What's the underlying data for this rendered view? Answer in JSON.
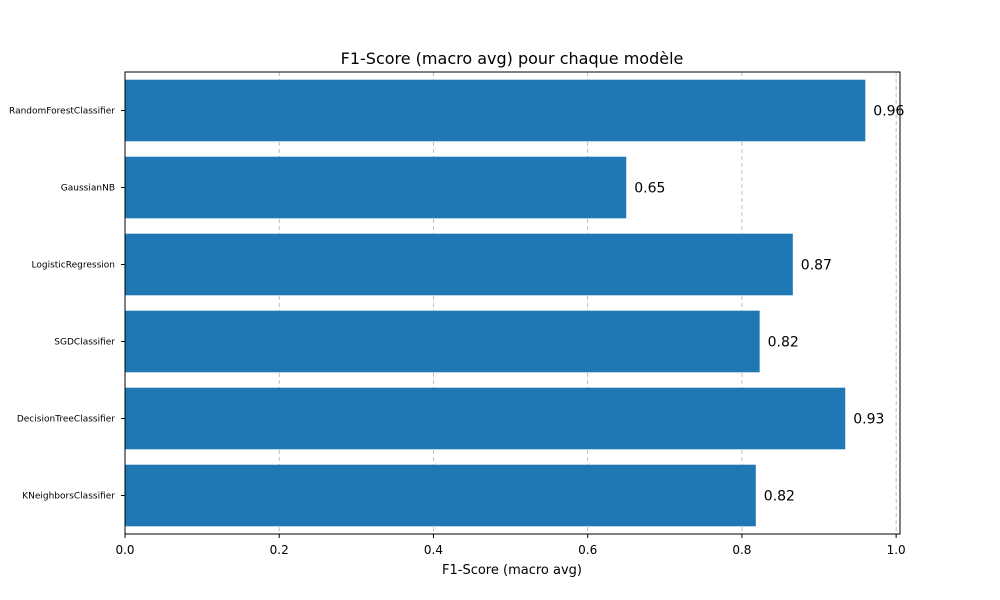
{
  "chart_data": {
    "type": "bar",
    "orientation": "horizontal",
    "title": "F1-Score (macro avg) pour chaque modèle",
    "xlabel": "F1-Score (macro avg)",
    "ylabel": "",
    "xlim": [
      0.0,
      1.005
    ],
    "xticks": [
      0.0,
      0.2,
      0.4,
      0.6,
      0.8,
      1.0
    ],
    "xtick_labels": [
      "0.0",
      "0.2",
      "0.4",
      "0.6",
      "0.8",
      "1.0"
    ],
    "grid": "x dashed",
    "color": "#1f77b4",
    "categories": [
      "RandomForestClassifier",
      "GaussianNB",
      "LogisticRegression",
      "SGDClassifier",
      "DecisionTreeClassifier",
      "KNeighborsClassifier"
    ],
    "values": [
      0.96,
      0.65,
      0.866,
      0.823,
      0.934,
      0.818
    ],
    "data_labels": [
      "0.96",
      "0.65",
      "0.87",
      "0.82",
      "0.93",
      "0.82"
    ]
  }
}
